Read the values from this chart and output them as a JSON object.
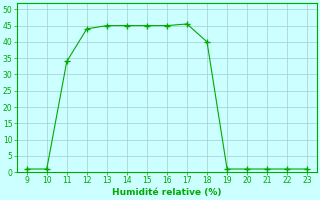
{
  "x": [
    9,
    10,
    11,
    12,
    13,
    14,
    15,
    16,
    17,
    18,
    19,
    20,
    21,
    22,
    23
  ],
  "y": [
    1,
    1,
    34,
    44,
    45,
    45,
    45,
    45,
    45.5,
    40,
    1,
    1,
    1,
    1,
    1
  ],
  "line_color": "#00aa00",
  "marker": "+",
  "marker_size": 4,
  "marker_color": "#00aa00",
  "bg_color": "#ccffff",
  "grid_color": "#aacccc",
  "axis_color": "#00aa00",
  "xlabel": "Humidité relative (%)",
  "xlabel_color": "#00aa00",
  "tick_color": "#00aa00",
  "xlim": [
    8.5,
    23.5
  ],
  "ylim": [
    0,
    52
  ],
  "xticks": [
    9,
    10,
    11,
    12,
    13,
    14,
    15,
    16,
    17,
    18,
    19,
    20,
    21,
    22,
    23
  ],
  "yticks": [
    0,
    5,
    10,
    15,
    20,
    25,
    30,
    35,
    40,
    45,
    50
  ],
  "title": ""
}
